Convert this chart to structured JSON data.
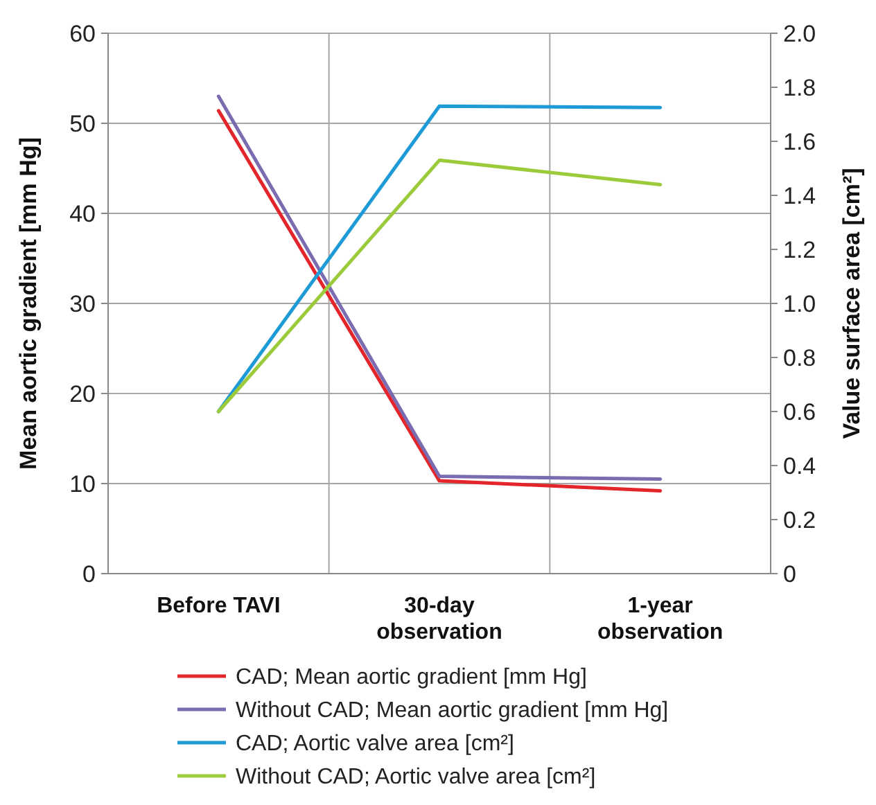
{
  "chart_data": {
    "type": "line",
    "categories": [
      "Before TAVI",
      "30-day observation",
      "1-year observation"
    ],
    "ylabel": "Mean aortic gradient [mm Hg]",
    "y2label": "Value surface area [cm²]",
    "ylim": [
      0,
      60
    ],
    "yticks": [
      0,
      10,
      20,
      30,
      40,
      50,
      60
    ],
    "y2lim": [
      0,
      2
    ],
    "y2ticks": [
      0,
      {
        "value": 0.2,
        "label": "0.2"
      },
      {
        "value": 0.4,
        "label": "0.4"
      },
      {
        "value": 0.6,
        "label": "0.6"
      },
      {
        "value": 0.8,
        "label": "0.8"
      },
      {
        "value": 1,
        "label": "1.0"
      },
      {
        "value": 1.2,
        "label": "1.2"
      },
      {
        "value": 1.4,
        "label": "1.4"
      },
      {
        "value": 1.6,
        "label": "1.6"
      },
      {
        "value": 1.8,
        "label": "1.8"
      },
      {
        "value": 2,
        "label": "2.0"
      }
    ],
    "grid": true,
    "legend": "bottom",
    "marker": "none",
    "line_style": "solid",
    "series": [
      {
        "name": "CAD; Mean aortic gradient [mm Hg]",
        "color": "#e3262b",
        "values": [
          51.4,
          10.3,
          9.2
        ]
      },
      {
        "name": "Without CAD; Mean aortic gradient [mm Hg]",
        "color": "#7b6bb0",
        "values": [
          53,
          10.8,
          10.5
        ]
      },
      {
        "name": "CAD; Aortic valve area [cm²]",
        "color": "#1e9ad6",
        "axis": "y2",
        "values": [
          0.6,
          1.73,
          1.725
        ]
      },
      {
        "name": "Without CAD; Aortic valve area [cm²]",
        "color": "#9bcb3b",
        "axis": "y2",
        "values": [
          0.6,
          1.53,
          1.44
        ]
      }
    ]
  }
}
